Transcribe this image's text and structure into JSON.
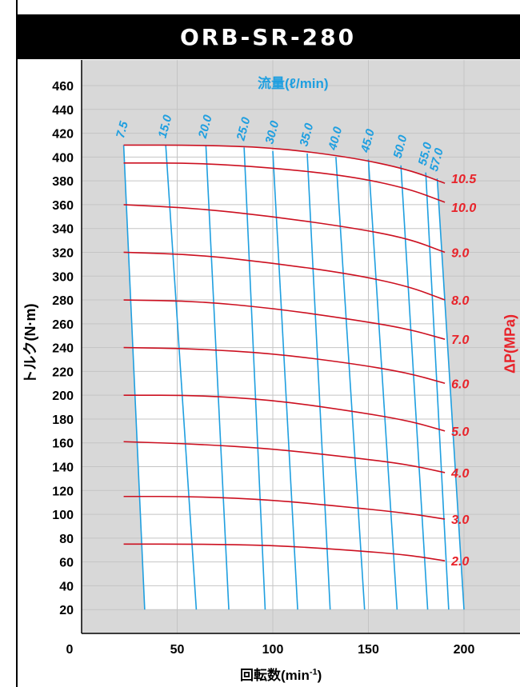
{
  "title": "ORB-SR-280",
  "chart_data": {
    "type": "line",
    "xlabel": "回転数(min",
    "xlabel_sup": "-1",
    "xlabel_end": ")",
    "ylabel": "トルク(N·m)",
    "flow_label": "流量(ℓ/min)",
    "dp_label": "ΔP(MPa)",
    "xlim": [
      0,
      230
    ],
    "ylim": [
      0,
      470
    ],
    "x_ticks": [
      "0",
      "50",
      "100",
      "150",
      "200"
    ],
    "y_ticks": [
      "20",
      "40",
      "60",
      "80",
      "100",
      "120",
      "140",
      "160",
      "180",
      "200",
      "220",
      "240",
      "260",
      "280",
      "300",
      "320",
      "340",
      "360",
      "380",
      "400",
      "420",
      "440",
      "460"
    ],
    "flow_series": [
      {
        "name": "7.5",
        "points": [
          [
            22,
            410
          ],
          [
            33,
            20
          ]
        ]
      },
      {
        "name": "15.0",
        "points": [
          [
            44,
            410
          ],
          [
            60,
            20
          ]
        ]
      },
      {
        "name": "20.0",
        "points": [
          [
            65,
            410
          ],
          [
            77,
            20
          ]
        ]
      },
      {
        "name": "25.0",
        "points": [
          [
            85,
            408
          ],
          [
            96,
            20
          ]
        ]
      },
      {
        "name": "30.0",
        "points": [
          [
            100,
            405
          ],
          [
            113,
            20
          ]
        ]
      },
      {
        "name": "35.0",
        "points": [
          [
            118,
            403
          ],
          [
            130,
            20
          ]
        ]
      },
      {
        "name": "40.0",
        "points": [
          [
            133,
            400
          ],
          [
            148,
            20
          ]
        ]
      },
      {
        "name": "45.0",
        "points": [
          [
            150,
            398
          ],
          [
            165,
            20
          ]
        ]
      },
      {
        "name": "50.0",
        "points": [
          [
            167,
            393
          ],
          [
            181,
            20
          ]
        ]
      },
      {
        "name": "55.0",
        "points": [
          [
            180,
            387
          ],
          [
            192,
            20
          ]
        ]
      },
      {
        "name": "57.0",
        "points": [
          [
            186,
            382
          ],
          [
            200,
            20
          ]
        ]
      }
    ],
    "pressure_series": [
      {
        "name": "10.5",
        "points": [
          [
            22,
            410
          ],
          [
            60,
            410
          ],
          [
            100,
            408
          ],
          [
            140,
            400
          ],
          [
            170,
            390
          ],
          [
            190,
            378
          ]
        ]
      },
      {
        "name": "10.0",
        "points": [
          [
            22,
            395
          ],
          [
            60,
            395
          ],
          [
            100,
            391
          ],
          [
            140,
            384
          ],
          [
            170,
            374
          ],
          [
            190,
            362
          ]
        ]
      },
      {
        "name": "9.0",
        "points": [
          [
            22,
            360
          ],
          [
            60,
            357
          ],
          [
            100,
            350
          ],
          [
            140,
            341
          ],
          [
            170,
            332
          ],
          [
            190,
            320
          ]
        ]
      },
      {
        "name": "8.0",
        "points": [
          [
            22,
            320
          ],
          [
            60,
            318
          ],
          [
            100,
            311
          ],
          [
            140,
            302
          ],
          [
            170,
            292
          ],
          [
            190,
            280
          ]
        ]
      },
      {
        "name": "7.0",
        "points": [
          [
            22,
            280
          ],
          [
            60,
            279
          ],
          [
            100,
            273
          ],
          [
            140,
            264
          ],
          [
            170,
            256
          ],
          [
            190,
            247
          ]
        ]
      },
      {
        "name": "6.0",
        "points": [
          [
            22,
            240
          ],
          [
            60,
            239
          ],
          [
            100,
            235
          ],
          [
            140,
            227
          ],
          [
            170,
            219
          ],
          [
            190,
            210
          ]
        ]
      },
      {
        "name": "5.0",
        "points": [
          [
            22,
            200
          ],
          [
            60,
            200
          ],
          [
            100,
            196
          ],
          [
            140,
            187
          ],
          [
            170,
            179
          ],
          [
            190,
            170
          ]
        ]
      },
      {
        "name": "4.0",
        "points": [
          [
            22,
            161
          ],
          [
            60,
            159
          ],
          [
            100,
            155
          ],
          [
            140,
            148
          ],
          [
            170,
            142
          ],
          [
            190,
            135
          ]
        ]
      },
      {
        "name": "3.0",
        "points": [
          [
            22,
            115
          ],
          [
            60,
            115
          ],
          [
            100,
            112
          ],
          [
            140,
            106
          ],
          [
            170,
            101
          ],
          [
            190,
            96
          ]
        ]
      },
      {
        "name": "2.0",
        "points": [
          [
            22,
            75
          ],
          [
            60,
            75
          ],
          [
            100,
            74
          ],
          [
            140,
            70
          ],
          [
            170,
            66
          ],
          [
            190,
            61
          ]
        ]
      }
    ],
    "colors": {
      "flow": "#1f9fe0",
      "pressure": "#cc1020",
      "pressure_label": "#e8232a",
      "plot_bg": "#d8d8d8",
      "region_bg": "#ffffff"
    }
  }
}
